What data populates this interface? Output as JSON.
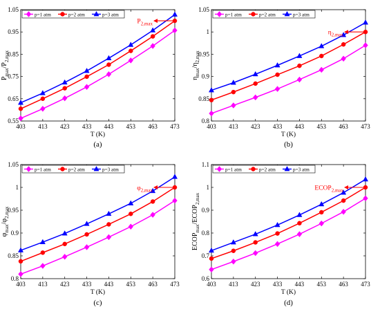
{
  "chart_data": [
    {
      "type": "line",
      "panel_label": "(a)",
      "xlabel": "T (K)",
      "ylabel_main": "P",
      "ylabel_sub1": "max",
      "ylabel_mid": "/P",
      "ylabel_sub2": "2,max",
      "x": [
        403,
        413,
        423,
        433,
        443,
        453,
        463,
        473
      ],
      "xlim": [
        403,
        473
      ],
      "ylim": [
        0.55,
        1.05
      ],
      "xticks": [
        "403",
        "413",
        "423",
        "433",
        "443",
        "453",
        "463",
        "473"
      ],
      "yticks": [
        "0.55",
        "0.65",
        "0.75",
        "0.85",
        "0.95",
        "1.05"
      ],
      "ytick_values": [
        0.55,
        0.65,
        0.75,
        0.85,
        0.95,
        1.05
      ],
      "legend": "top-left",
      "annotation": {
        "main": "P",
        "sub": "2,max",
        "x": 473,
        "y": 1.0
      },
      "series": [
        {
          "name": "p=1 atm",
          "color": "#ff00ff",
          "marker": "diamond",
          "values": [
            0.562,
            0.605,
            0.652,
            0.703,
            0.76,
            0.822,
            0.887,
            0.957
          ]
        },
        {
          "name": "p=2 atm",
          "color": "#ff0000",
          "marker": "circle",
          "values": [
            0.605,
            0.65,
            0.697,
            0.749,
            0.803,
            0.865,
            0.93,
            1.0
          ]
        },
        {
          "name": "p=3 atm",
          "color": "#0000ff",
          "marker": "triangle",
          "values": [
            0.632,
            0.675,
            0.723,
            0.775,
            0.832,
            0.892,
            0.957,
            1.028
          ]
        }
      ]
    },
    {
      "type": "line",
      "panel_label": "(b)",
      "xlabel": "T (K)",
      "ylabel_main": "η",
      "ylabel_sub1": "max",
      "ylabel_mid": "/η",
      "ylabel_sub2": "2,max",
      "x": [
        403,
        413,
        423,
        433,
        443,
        453,
        463,
        473
      ],
      "xlim": [
        403,
        473
      ],
      "ylim": [
        0.8,
        1.05
      ],
      "xticks": [
        "403",
        "413",
        "423",
        "433",
        "443",
        "453",
        "463",
        "473"
      ],
      "yticks": [
        "0.8",
        "0.85",
        "0.9",
        "0.95",
        "1",
        "1.05"
      ],
      "ytick_values": [
        0.8,
        0.85,
        0.9,
        0.95,
        1.0,
        1.05
      ],
      "legend": "top-left",
      "annotation": {
        "main": "η",
        "sub": "2,max",
        "x": 473,
        "y": 1.0
      },
      "series": [
        {
          "name": "p=1 atm",
          "color": "#ff00ff",
          "marker": "diamond",
          "values": [
            0.817,
            0.835,
            0.853,
            0.872,
            0.893,
            0.915,
            0.94,
            0.97
          ]
        },
        {
          "name": "p=2 atm",
          "color": "#ff0000",
          "marker": "circle",
          "values": [
            0.847,
            0.865,
            0.884,
            0.904,
            0.924,
            0.946,
            0.972,
            1.0
          ]
        },
        {
          "name": "p=3 atm",
          "color": "#0000ff",
          "marker": "triangle",
          "values": [
            0.869,
            0.886,
            0.905,
            0.925,
            0.946,
            0.968,
            0.993,
            1.021
          ]
        }
      ]
    },
    {
      "type": "line",
      "panel_label": "(c)",
      "xlabel": "T (K)",
      "ylabel_main": "φ",
      "ylabel_sub1": "max",
      "ylabel_mid": "/φ",
      "ylabel_sub2": "2,max",
      "x": [
        403,
        413,
        423,
        433,
        443,
        453,
        463,
        473
      ],
      "xlim": [
        403,
        473
      ],
      "ylim": [
        0.8,
        1.05
      ],
      "xticks": [
        "403",
        "413",
        "423",
        "433",
        "443",
        "453",
        "463",
        "473"
      ],
      "yticks": [
        "0.8",
        "0.85",
        "0.9",
        "0.95",
        "1",
        "1.05"
      ],
      "ytick_values": [
        0.8,
        0.85,
        0.9,
        0.95,
        1.0,
        1.05
      ],
      "legend": "top-left",
      "annotation": {
        "main": "φ",
        "sub": "2,max",
        "x": 473,
        "y": 1.0
      },
      "series": [
        {
          "name": "p=1 atm",
          "color": "#ff00ff",
          "marker": "diamond",
          "values": [
            0.81,
            0.828,
            0.848,
            0.869,
            0.891,
            0.914,
            0.94,
            0.971
          ]
        },
        {
          "name": "p=2 atm",
          "color": "#ff0000",
          "marker": "circle",
          "values": [
            0.838,
            0.857,
            0.876,
            0.897,
            0.919,
            0.942,
            0.969,
            1.0
          ]
        },
        {
          "name": "p=3 atm",
          "color": "#0000ff",
          "marker": "triangle",
          "values": [
            0.862,
            0.88,
            0.899,
            0.92,
            0.942,
            0.965,
            0.992,
            1.023
          ]
        }
      ]
    },
    {
      "type": "line",
      "panel_label": "(d)",
      "xlabel": "T (K)",
      "ylabel_main": "ECOP",
      "ylabel_sub1": "max",
      "ylabel_mid": "/ECOP",
      "ylabel_sub2": "2,max",
      "x": [
        403,
        413,
        423,
        433,
        443,
        453,
        463,
        473
      ],
      "xlim": [
        403,
        473
      ],
      "ylim": [
        0.6,
        1.1
      ],
      "xticks": [
        "403",
        "413",
        "423",
        "433",
        "443",
        "453",
        "463",
        "473"
      ],
      "yticks": [
        "0.6",
        "0.7",
        "0.8",
        "0.9",
        "1",
        "1.1"
      ],
      "ytick_values": [
        0.6,
        0.7,
        0.8,
        0.9,
        1.0,
        1.1
      ],
      "legend": "top-left",
      "annotation": {
        "main": "ECOP",
        "sub": "2,max",
        "x": 473,
        "y": 1.0
      },
      "series": [
        {
          "name": "p=1 atm",
          "color": "#ff00ff",
          "marker": "diamond",
          "values": [
            0.64,
            0.675,
            0.712,
            0.752,
            0.795,
            0.842,
            0.893,
            0.952
          ]
        },
        {
          "name": "p=2 atm",
          "color": "#ff0000",
          "marker": "circle",
          "values": [
            0.688,
            0.722,
            0.759,
            0.798,
            0.843,
            0.891,
            0.942,
            1.0
          ]
        },
        {
          "name": "p=3 atm",
          "color": "#0000ff",
          "marker": "triangle",
          "values": [
            0.723,
            0.759,
            0.795,
            0.835,
            0.879,
            0.926,
            0.977,
            1.035
          ]
        }
      ]
    }
  ]
}
